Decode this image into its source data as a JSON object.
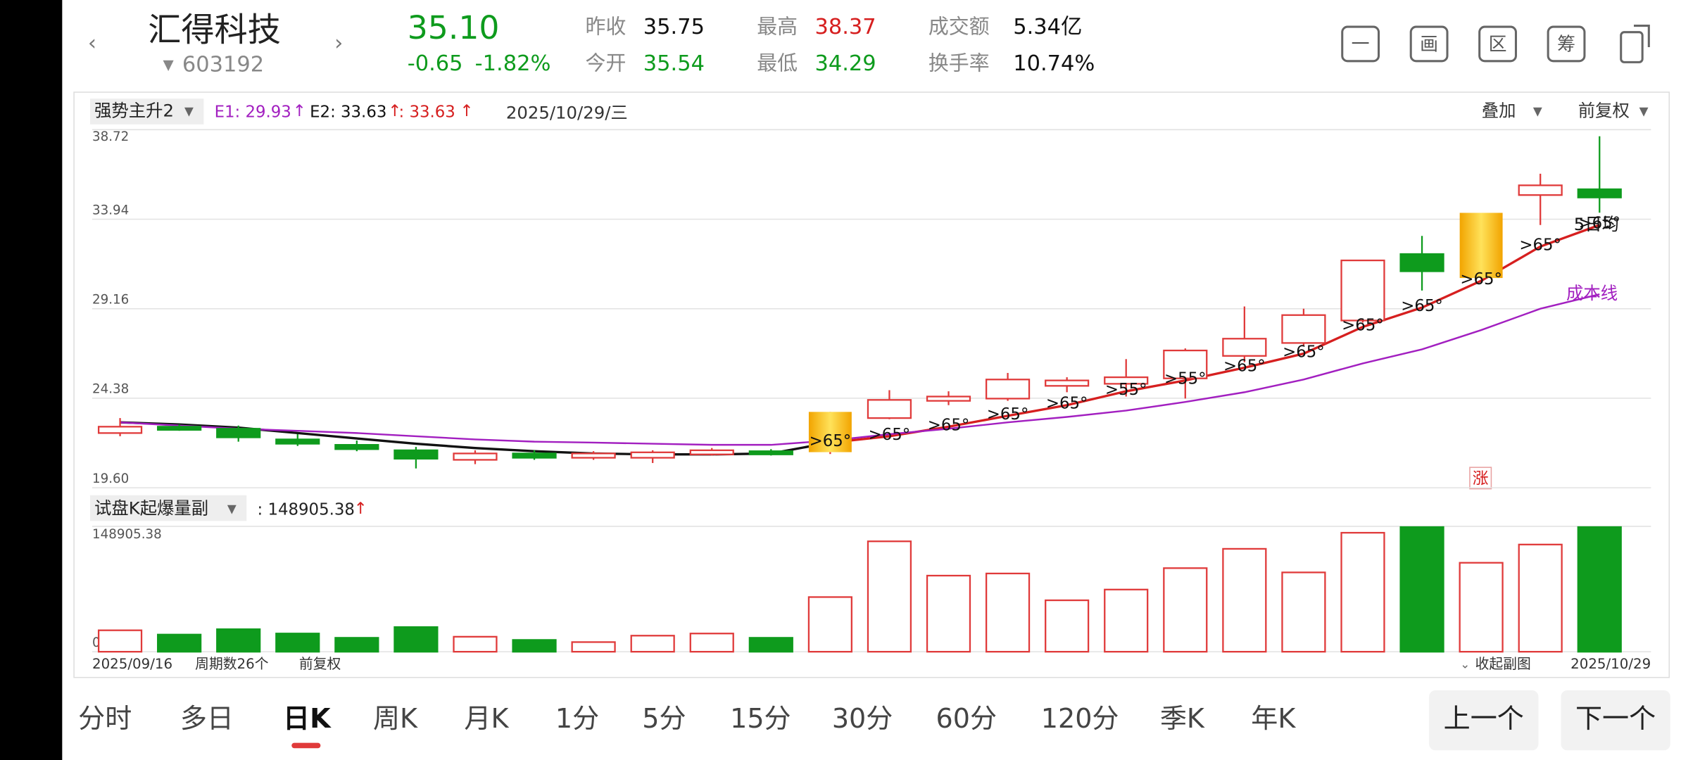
{
  "header": {
    "name": "汇得科技",
    "code": "603192",
    "price": "35.10",
    "change": "-0.65",
    "change_pct": "-1.82%",
    "stats": [
      [
        "昨收",
        "35.75"
      ],
      [
        "今开",
        "35.54"
      ],
      [
        "最高",
        "38.37"
      ],
      [
        "最低",
        "34.29"
      ],
      [
        "成交额",
        "5.34亿"
      ],
      [
        "换手率",
        "10.74%"
      ]
    ],
    "tools": [
      "一",
      "画",
      "区",
      "筹"
    ]
  },
  "indicator": {
    "name": "强势主升2",
    "e1": "E1: 29.93",
    "e2": "E2: 33.63",
    "e3": ": 33.63",
    "arrow": "↑",
    "date": "2025/10/29/三",
    "overlay": "叠加",
    "adjust": "前复权"
  },
  "sub_indicator": {
    "name": "试盘K起爆量副",
    "value": ": 148905.38",
    "arrow": "↑"
  },
  "footer": {
    "start": "2025/09/16",
    "periods": "周期数26个",
    "adjust": "前复权",
    "collapse": "收起副图",
    "end": "2025/10/29"
  },
  "limit_stamp": "涨",
  "chart_data": [
    {
      "type": "candlestick",
      "ylim": [
        19.6,
        38.72
      ],
      "yticks": [
        38.72,
        33.94,
        29.16,
        24.38,
        {
          "value": 19.6,
          "label": "19.60"
        }
      ],
      "grid": true,
      "up_color": "#e03a3a",
      "down_color": "#0e9b1d",
      "open": [
        22.52,
        22.86,
        22.75,
        22.18,
        21.89,
        21.6,
        21.09,
        21.43,
        21.2,
        21.2,
        21.38,
        21.55,
        21.5,
        23.32,
        24.24,
        24.36,
        25.04,
        25.15,
        25.44,
        26.64,
        27.33,
        28.53,
        32.08,
        30.8,
        35.23,
        35.54
      ],
      "close": [
        22.86,
        22.69,
        22.29,
        21.95,
        21.66,
        21.15,
        21.43,
        21.2,
        21.43,
        21.49,
        21.6,
        21.38,
        23.65,
        24.29,
        24.47,
        25.38,
        25.33,
        25.5,
        26.93,
        27.56,
        28.82,
        31.74,
        31.16,
        34.28,
        35.75,
        35.1
      ],
      "high": [
        23.32,
        22.98,
        22.92,
        22.46,
        22.12,
        21.78,
        21.6,
        21.6,
        21.55,
        21.6,
        21.72,
        21.66,
        23.65,
        24.81,
        24.75,
        25.73,
        25.5,
        26.47,
        27.04,
        29.28,
        29.16,
        31.74,
        33.05,
        34.28,
        36.37,
        38.37
      ],
      "low": [
        22.35,
        22.64,
        22.06,
        21.83,
        21.55,
        20.63,
        20.86,
        21.09,
        21.09,
        20.92,
        21.32,
        21.32,
        21.4,
        23.26,
        24.01,
        24.24,
        24.7,
        24.47,
        24.36,
        26.3,
        27.21,
        28.42,
        30.13,
        30.75,
        33.63,
        34.29
      ],
      "gold": [
        false,
        false,
        false,
        false,
        false,
        false,
        false,
        false,
        false,
        false,
        false,
        false,
        true,
        false,
        false,
        false,
        false,
        false,
        false,
        false,
        false,
        false,
        false,
        true,
        false,
        false
      ],
      "angle_labels": [
        null,
        null,
        null,
        null,
        null,
        null,
        null,
        null,
        null,
        null,
        null,
        null,
        ">65°",
        ">65°",
        ">65°",
        ">65°",
        ">65°",
        ">55°",
        ">55°",
        ">65°",
        ">65°",
        ">65°",
        ">65°",
        ">65°",
        ">65°",
        ">65°"
      ],
      "series": [
        {
          "name": "5日均",
          "colors": [
            "#111111",
            "#d61f1f"
          ],
          "values": [
            23.09,
            22.98,
            22.81,
            22.52,
            22.23,
            21.95,
            21.72,
            21.55,
            21.43,
            21.38,
            21.38,
            21.43,
            22.01,
            22.35,
            22.86,
            23.44,
            24.01,
            24.75,
            25.33,
            26.01,
            26.76,
            28.19,
            29.22,
            30.65,
            32.48,
            33.63
          ]
        },
        {
          "name": "成本线",
          "color": "#a21fc0",
          "values": [
            23.09,
            22.92,
            22.75,
            22.64,
            22.52,
            22.35,
            22.18,
            22.06,
            22.01,
            21.95,
            21.89,
            21.89,
            22.12,
            22.46,
            22.75,
            23.09,
            23.38,
            23.72,
            24.18,
            24.7,
            25.38,
            26.24,
            26.99,
            28.02,
            29.16,
            29.93
          ]
        }
      ]
    },
    {
      "type": "bar",
      "ylim": [
        0,
        148905.38
      ],
      "yticks": [
        148905.38,
        {
          "value": 0,
          "label": "0.00"
        }
      ],
      "values": [
        25454,
        20364,
        26727,
        21636,
        16545,
        29272,
        17818,
        14000,
        11454,
        19091,
        21636,
        16545,
        64909,
        131090,
        90363,
        92909,
        61090,
        73818,
        99272,
        122181,
        94181,
        141272,
        155000,
        105636,
        127272,
        148905.38
      ]
    }
  ],
  "tabs": [
    "分时",
    "多日",
    "日K",
    "周K",
    "月K",
    "1分",
    "5分",
    "15分",
    "30分",
    "60分",
    "120分",
    "季K",
    "年K"
  ],
  "buttons": [
    "上一个",
    "下一个"
  ]
}
